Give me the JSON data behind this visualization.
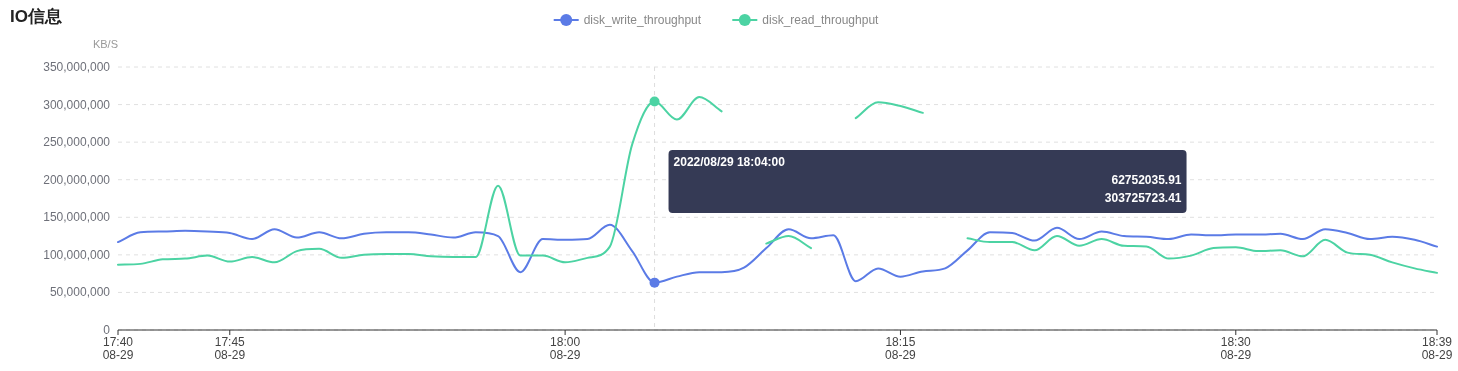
{
  "chart_data": {
    "type": "line",
    "title": "IO信息",
    "ylabel": "KB/S",
    "x": [
      "2022-08-29T17:40",
      "2022-08-29T17:41",
      "2022-08-29T17:42",
      "2022-08-29T17:43",
      "2022-08-29T17:44",
      "2022-08-29T17:45",
      "2022-08-29T17:46",
      "2022-08-29T17:47",
      "2022-08-29T17:48",
      "2022-08-29T17:49",
      "2022-08-29T17:50",
      "2022-08-29T17:51",
      "2022-08-29T17:52",
      "2022-08-29T17:53",
      "2022-08-29T17:54",
      "2022-08-29T17:55",
      "2022-08-29T17:56",
      "2022-08-29T17:57",
      "2022-08-29T17:58",
      "2022-08-29T17:59",
      "2022-08-29T18:00",
      "2022-08-29T18:01",
      "2022-08-29T18:02",
      "2022-08-29T18:03",
      "2022-08-29T18:04",
      "2022-08-29T18:05",
      "2022-08-29T18:06",
      "2022-08-29T18:07",
      "2022-08-29T18:08",
      "2022-08-29T18:09",
      "2022-08-29T18:10",
      "2022-08-29T18:11",
      "2022-08-29T18:12",
      "2022-08-29T18:13",
      "2022-08-29T18:14",
      "2022-08-29T18:15",
      "2022-08-29T18:16",
      "2022-08-29T18:17",
      "2022-08-29T18:18",
      "2022-08-29T18:19",
      "2022-08-29T18:20",
      "2022-08-29T18:21",
      "2022-08-29T18:22",
      "2022-08-29T18:23",
      "2022-08-29T18:24",
      "2022-08-29T18:25",
      "2022-08-29T18:26",
      "2022-08-29T18:27",
      "2022-08-29T18:28",
      "2022-08-29T18:29",
      "2022-08-29T18:30",
      "2022-08-29T18:31",
      "2022-08-29T18:32",
      "2022-08-29T18:33",
      "2022-08-29T18:34",
      "2022-08-29T18:35",
      "2022-08-29T18:36",
      "2022-08-29T18:37",
      "2022-08-29T18:38",
      "2022-08-29T18:39"
    ],
    "series": [
      {
        "name": "disk_write_throughput",
        "color": "#5b7be6",
        "values": [
          117000000,
          130000000,
          131000000,
          132000000,
          131000000,
          129000000,
          121000000,
          134000000,
          123000000,
          130000000,
          122000000,
          128000000,
          130000000,
          130000000,
          127000000,
          123000000,
          130000000,
          125000000,
          77000000,
          121000000,
          120000000,
          121000000,
          140000000,
          105000000,
          63000000,
          71000000,
          77000000,
          77000000,
          83000000,
          109000000,
          134000000,
          122000000,
          126000000,
          65000000,
          82000000,
          71000000,
          78000000,
          82000000,
          106000000,
          130000000,
          129000000,
          119000000,
          136000000,
          121000000,
          131000000,
          125000000,
          124000000,
          121000000,
          127000000,
          126000000,
          127000000,
          127000000,
          128000000,
          121000000,
          134000000,
          129000000,
          121000000,
          124000000,
          120000000,
          111000000
        ]
      },
      {
        "name": "disk_read_throughput",
        "color": "#4cd3a3",
        "values": [
          87000000,
          88000000,
          94000000,
          95000000,
          99000000,
          91000000,
          97000000,
          90000000,
          105000000,
          108000000,
          96000000,
          100000000,
          101000000,
          101000000,
          98000000,
          97000000,
          97000000,
          192000000,
          99000000,
          99000000,
          90000000,
          96000000,
          111000000,
          247000000,
          304000000,
          280000000,
          310000000,
          291000000,
          null,
          115000000,
          125000000,
          109000000,
          null,
          282000000,
          303000000,
          298000000,
          289000000,
          null,
          122000000,
          117000000,
          117000000,
          106000000,
          125000000,
          112000000,
          121000000,
          112000000,
          111000000,
          95000000,
          99000000,
          109000000,
          110000000,
          105000000,
          106000000,
          98000000,
          120000000,
          103000000,
          100000000,
          90000000,
          82000000,
          76000000
        ]
      }
    ],
    "xlim": [
      "2022-08-29T17:40",
      "2022-08-29T18:39"
    ],
    "xticks": [
      {
        "value": "2022-08-29T17:40",
        "label": "17:40\n08-29"
      },
      {
        "value": "2022-08-29T17:45",
        "label": "17:45\n08-29"
      },
      {
        "value": "2022-08-29T18:00",
        "label": "18:00\n08-29"
      },
      {
        "value": "2022-08-29T18:15",
        "label": "18:15\n08-29"
      },
      {
        "value": "2022-08-29T18:30",
        "label": "18:30\n08-29"
      },
      {
        "value": "2022-08-29T18:39",
        "label": "18:39\n08-29"
      }
    ],
    "ylim": [
      0,
      350000000
    ],
    "yticks": [
      0,
      {
        "value": 50000000,
        "label": "50,000,000"
      },
      {
        "value": 100000000,
        "label": "100,000,000"
      },
      {
        "value": 150000000,
        "label": "150,000,000"
      },
      {
        "value": 200000000,
        "label": "200,000,000"
      },
      {
        "value": 250000000,
        "label": "250,000,000"
      },
      {
        "value": 300000000,
        "label": "300,000,000"
      },
      {
        "value": 350000000,
        "label": "350,000,000"
      }
    ],
    "grid": "y",
    "legend": "top",
    "marker": "none",
    "line_style": "solid",
    "ref_lines": [
      {
        "axis": "x",
        "value": "2022-08-29T18:04",
        "color": "#dddddd",
        "line_style": "dashed"
      }
    ],
    "annotations": [
      "2022/08/29 18:04:00",
      "62752035.91",
      "303725723.41"
    ]
  }
}
